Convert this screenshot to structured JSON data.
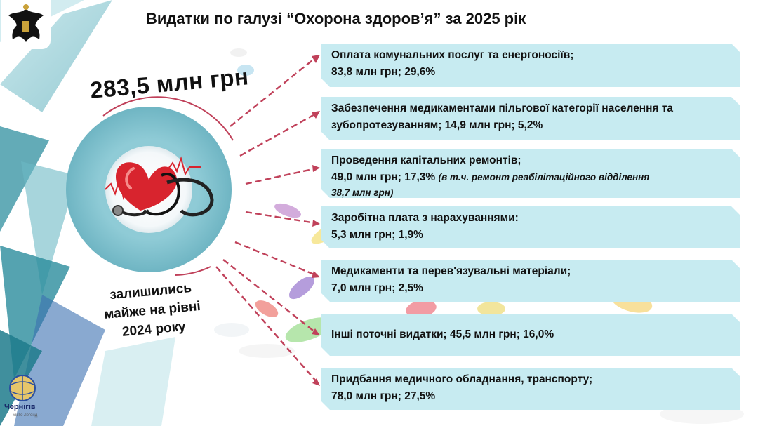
{
  "title": "Видатки по галузі “Охорона здоров’я” за 2025 рік",
  "total": "283,5 млн грн",
  "side_note": [
    "залишились",
    "майже на рівні",
    "2024 року"
  ],
  "logo_text": "Чернігів",
  "logo_subtext": "місто легенд",
  "colors": {
    "box": "#c7ebf1",
    "arrow": "#c0415a",
    "circle": "#8fcbd6"
  },
  "items": [
    {
      "lines": [
        "Оплата комунальних послуг та енергоносіїв;",
        "83,8 млн грн; 29,6%"
      ]
    },
    {
      "lines": [
        "Забезпечення медикаментами пільгової категорії населення та",
        "зубопротезуванням; 14,9 млн грн; 5,2%"
      ]
    },
    {
      "lines": [
        "Проведення капітальних ремонтів;"
      ],
      "value": "49,0 млн грн; 17,3%",
      "note": "(в т.ч. ремонт реабілітаційного відділення",
      "note2": "38,7 млн грн)"
    },
    {
      "lines": [
        "Заробітна плата з нарахуваннями:",
        "5,3 млн грн; 1,9%"
      ]
    },
    {
      "lines": [
        "Медикаменти та перев'язувальні матеріали;",
        "7,0 млн грн; 2,5%"
      ]
    },
    {
      "lines": [
        "Інші поточні видатки; 45,5 млн грн; 16,0%"
      ]
    },
    {
      "lines": [
        "Придбання медичного обладнання, транспорту;",
        "78,0 млн грн; 27,5%"
      ]
    }
  ]
}
